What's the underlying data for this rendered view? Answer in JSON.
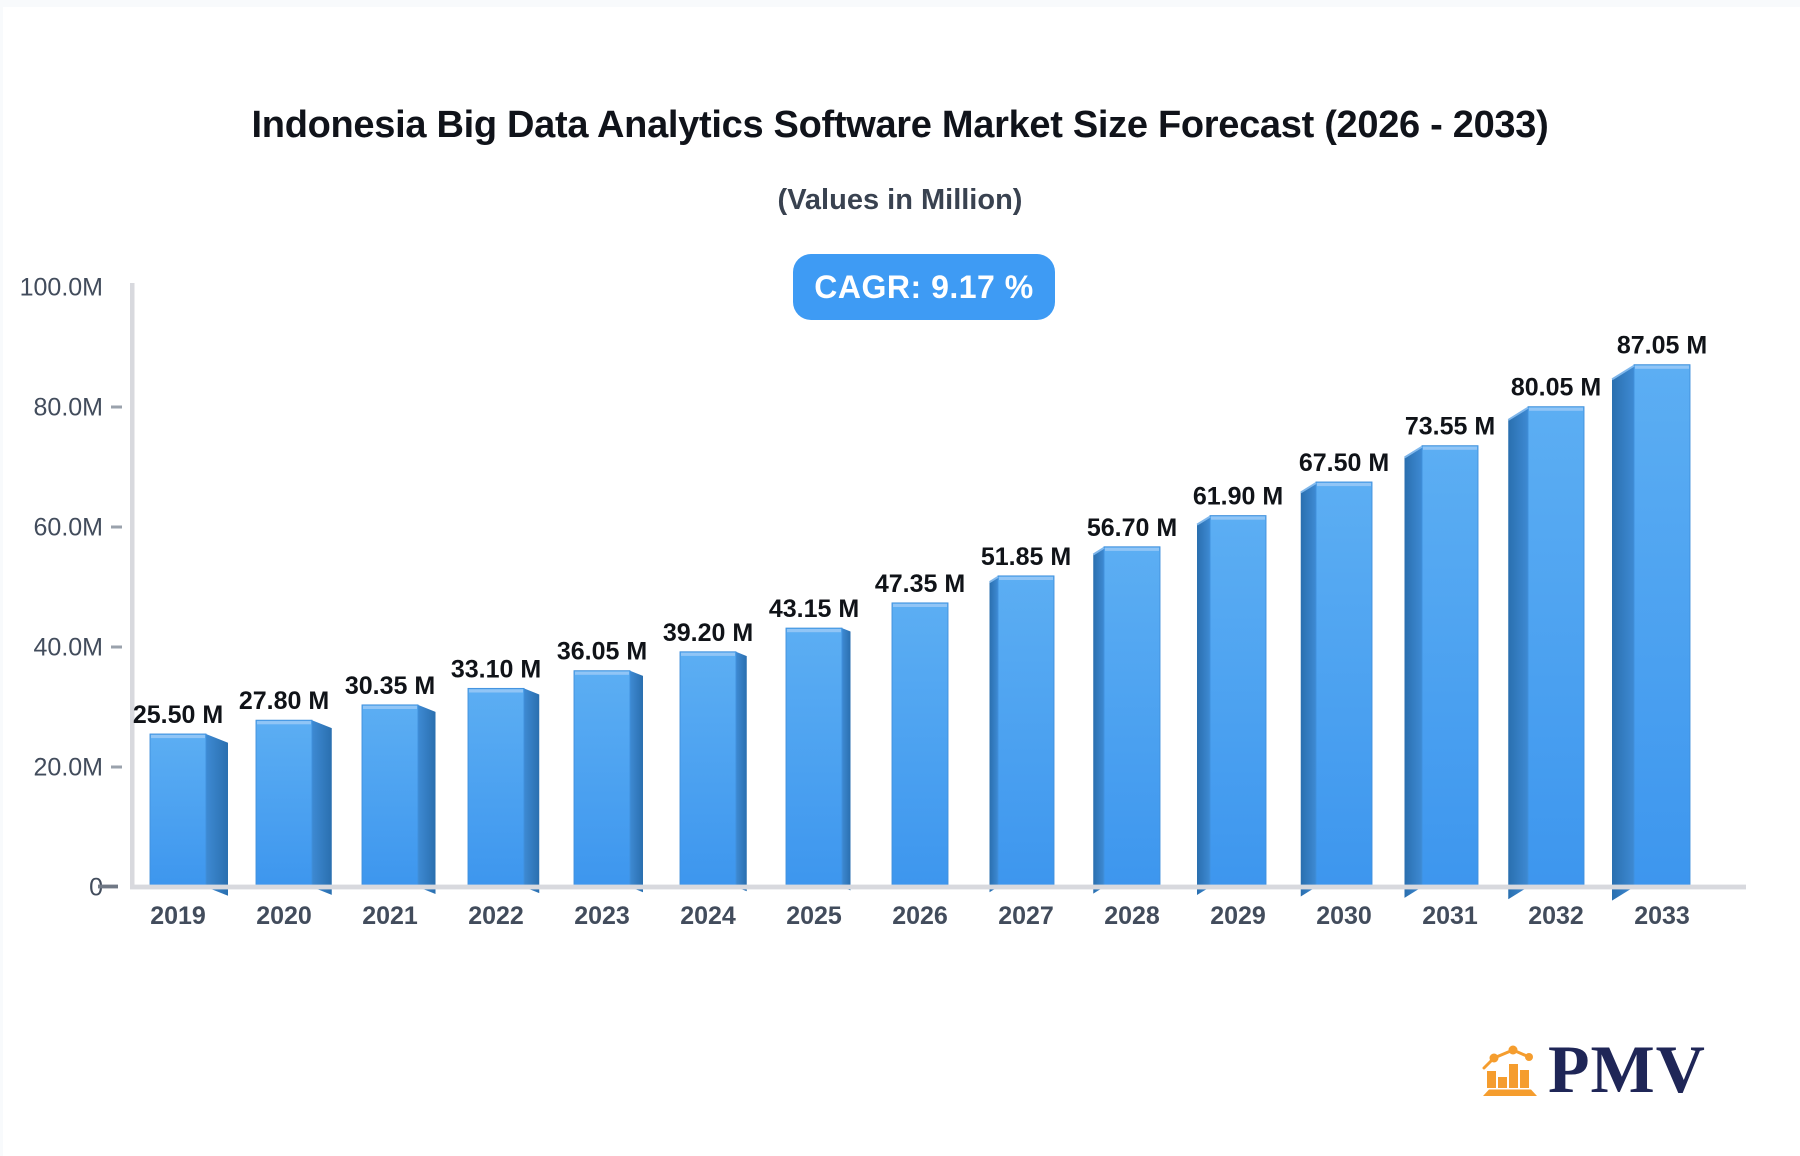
{
  "title": "Indonesia Big Data Analytics Software Market Size Forecast (2026 - 2033)",
  "subtitle": "(Values in Million)",
  "badge": {
    "label": "CAGR: 9.17 %"
  },
  "logo": {
    "text": "PMV"
  },
  "chart_data": {
    "type": "bar",
    "title": "Indonesia Big Data Analytics Software Market Size Forecast (2026 - 2033)",
    "subtitle": "(Values in Million)",
    "unit": "Million",
    "xlabel": "",
    "ylabel": "",
    "ylim": [
      0,
      100
    ],
    "grid": false,
    "legend": false,
    "categories": [
      "2019",
      "2020",
      "2021",
      "2022",
      "2023",
      "2024",
      "2025",
      "2026",
      "2027",
      "2028",
      "2029",
      "2030",
      "2031",
      "2032",
      "2033"
    ],
    "values": [
      25.5,
      27.8,
      30.35,
      33.1,
      36.05,
      39.2,
      43.15,
      47.35,
      51.85,
      56.7,
      61.9,
      67.5,
      73.55,
      80.05,
      87.05
    ],
    "value_labels": [
      "25.50 M",
      "27.80 M",
      "30.35 M",
      "33.10 M",
      "36.05 M",
      "39.20 M",
      "43.15 M",
      "47.35 M",
      "51.85 M",
      "56.70 M",
      "61.90 M",
      "67.50 M",
      "73.55 M",
      "80.05 M",
      "87.05 M"
    ],
    "y_axis": {
      "tick_values": [
        0,
        20,
        40,
        60,
        80,
        100
      ],
      "tick_labels": [
        "0",
        "20.0M",
        "40.0M",
        "60.0M",
        "80.0M",
        "100.0M"
      ]
    },
    "cagr": "9.17 %",
    "colors": {
      "bar_front_top": "#5CAEF3",
      "bar_front_bottom": "#3D96EE",
      "bar_front_stroke": "#4090DC",
      "bar_side": "#2D74B5",
      "bar_side_near": "#3E8AD3",
      "bar_side_far": "#2A6FAF",
      "bar_highlight": "#93C6F6",
      "axis_line": "#D8D9DE",
      "tick_dash": "#9AA2AC",
      "tick_zero": "#707885",
      "axis_label": "#424C5C",
      "value_label": "#101318",
      "badge_bg": "#3E9BF4",
      "logo_orange": "#F59D2E",
      "logo_navy": "#1F2657"
    }
  }
}
